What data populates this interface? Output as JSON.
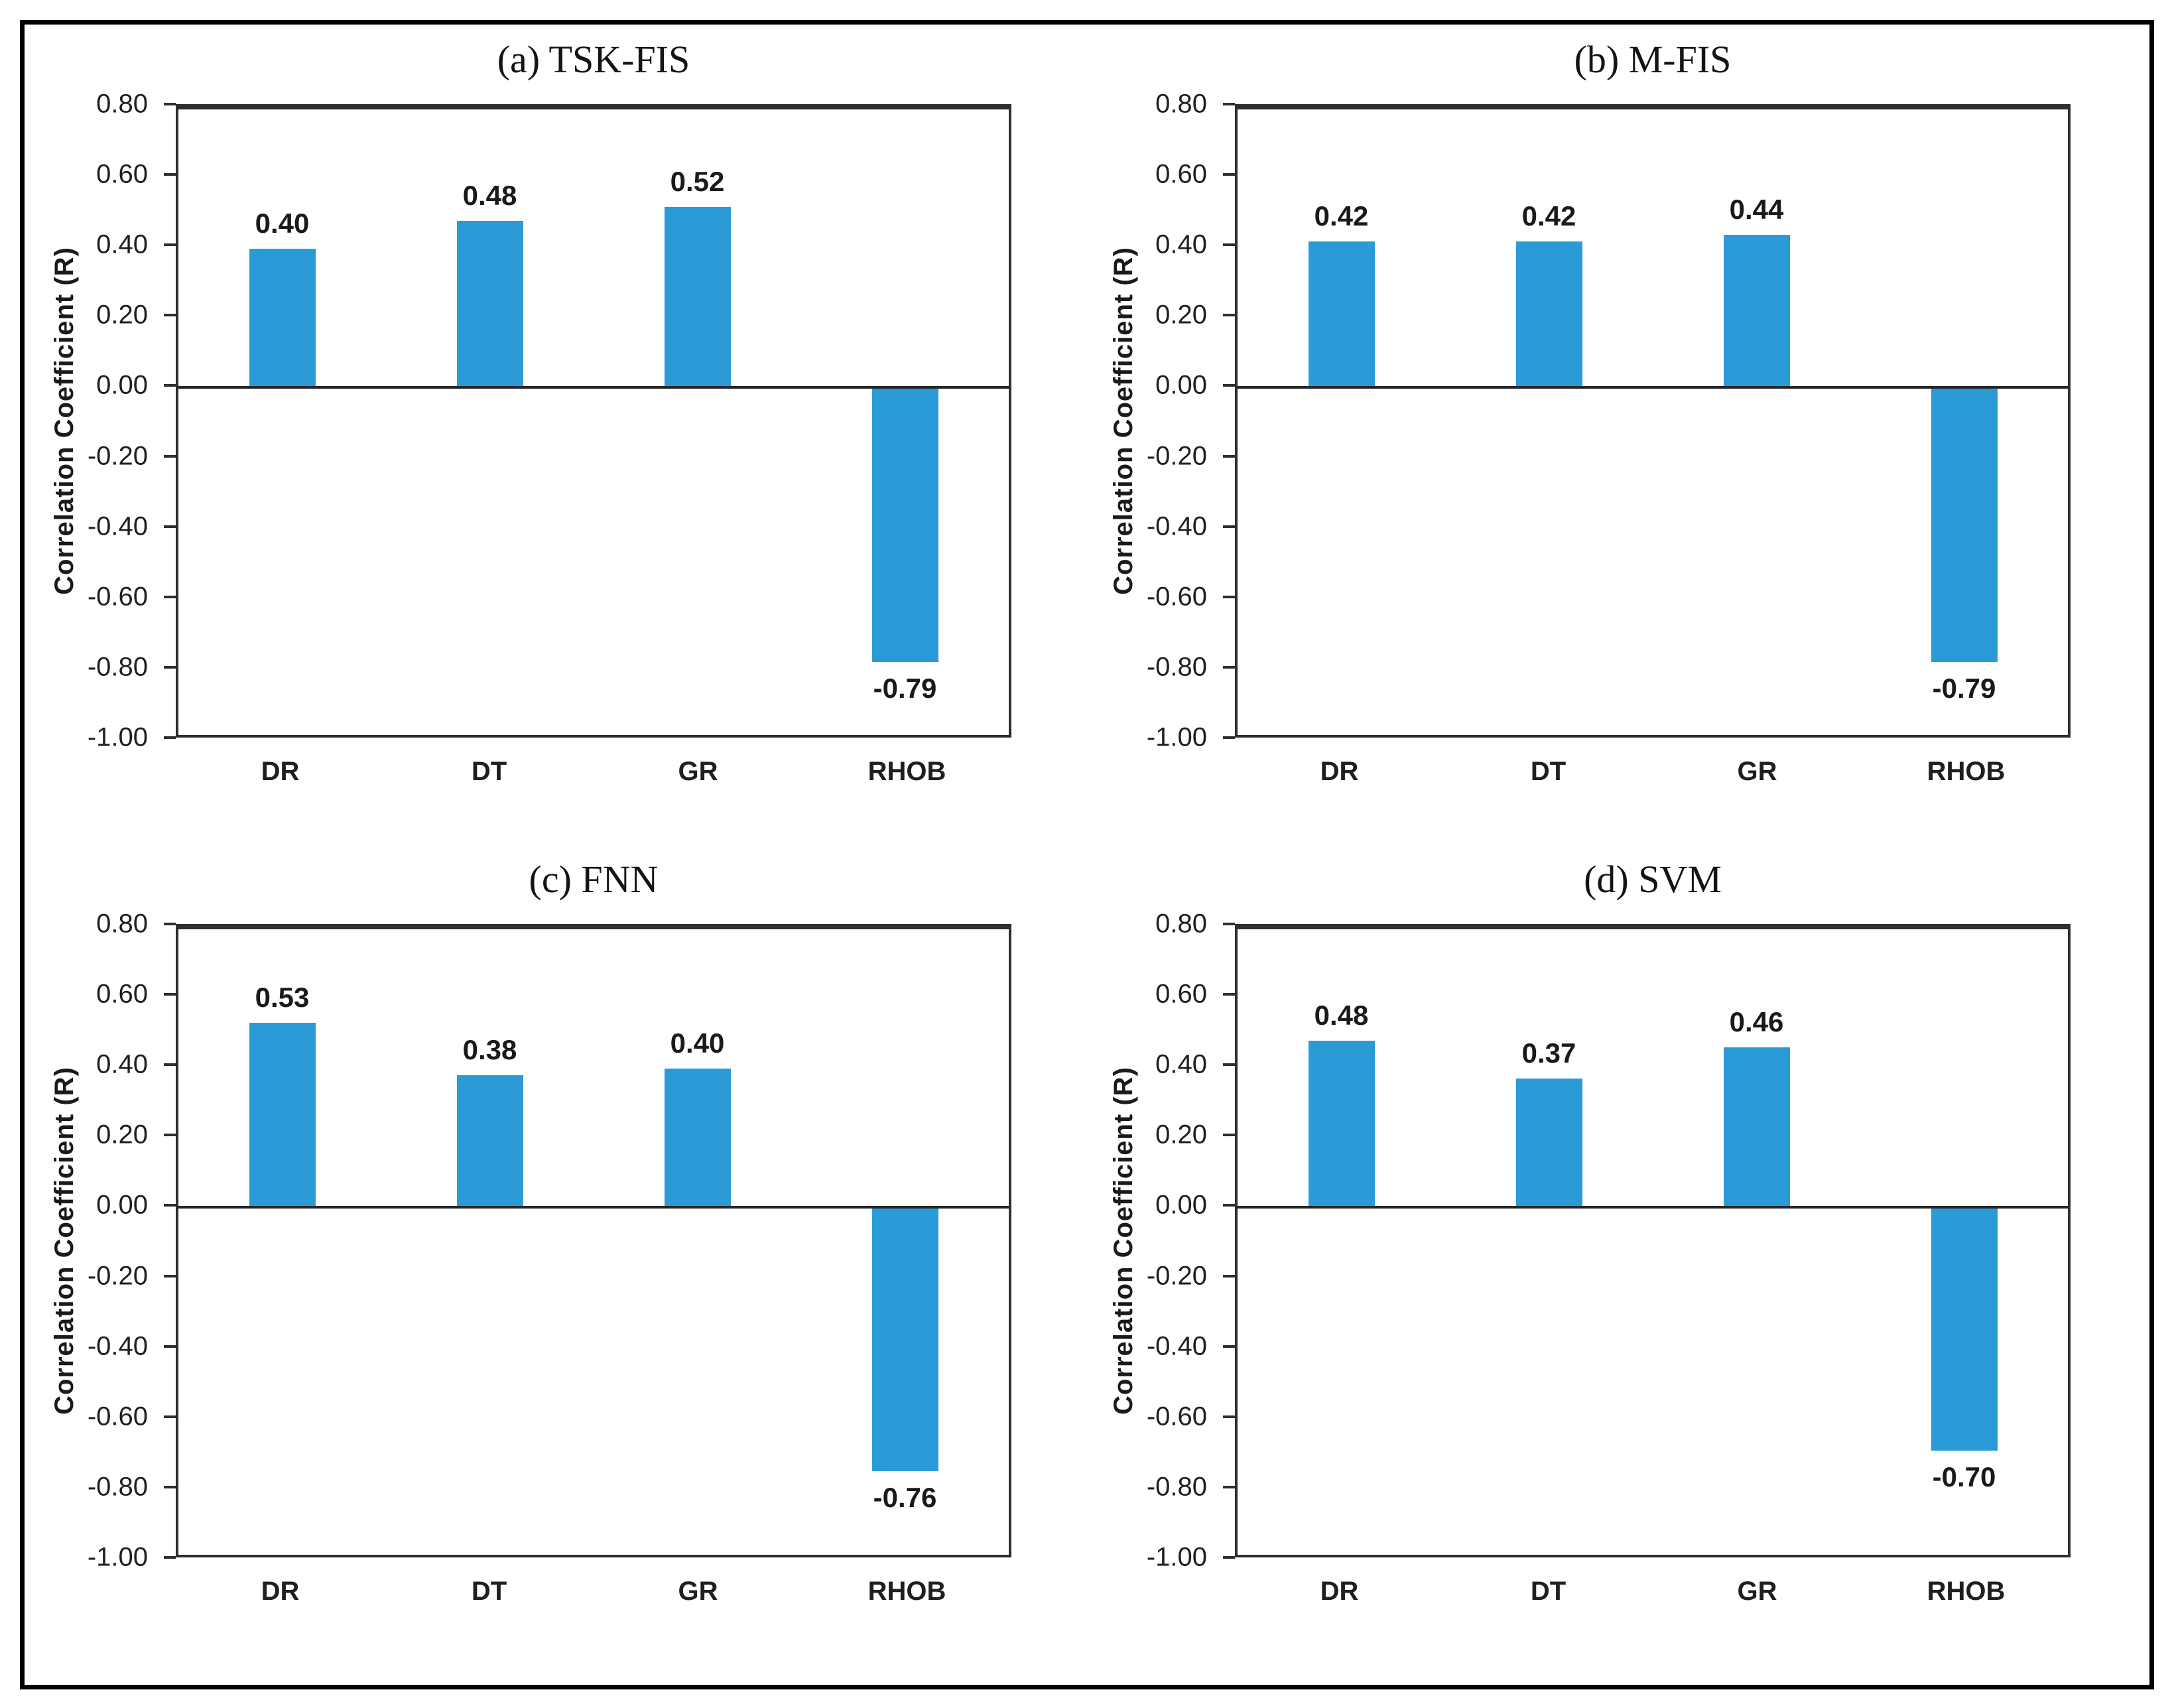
{
  "figure": {
    "background": "#ffffff",
    "border_color": "#000000",
    "bar_color": "#2B9BD7",
    "axis_color": "#2e2e2e",
    "text_color": "#1a1a1a"
  },
  "chart_data": [
    {
      "type": "bar",
      "panel_label": "(a) TSK-FIS",
      "categories": [
        "DR",
        "DT",
        "GR",
        "RHOB"
      ],
      "values": [
        0.4,
        0.48,
        0.52,
        -0.79
      ],
      "value_labels": [
        "0.40",
        "0.48",
        "0.52",
        "-0.79"
      ],
      "xlabel": "",
      "ylabel": "Correlation Coefficient (R)",
      "ylim": [
        -1.0,
        0.8
      ],
      "ytick_step": 0.2,
      "ytick_labels": [
        "0.80",
        "0.60",
        "0.40",
        "0.20",
        "0.00",
        "-0.20",
        "-0.40",
        "-0.60",
        "-0.80",
        "-1.00"
      ],
      "grid": false,
      "legend": null
    },
    {
      "type": "bar",
      "panel_label": "(b) M-FIS",
      "categories": [
        "DR",
        "DT",
        "GR",
        "RHOB"
      ],
      "values": [
        0.42,
        0.42,
        0.44,
        -0.79
      ],
      "value_labels": [
        "0.42",
        "0.42",
        "0.44",
        "-0.79"
      ],
      "xlabel": "",
      "ylabel": "Correlation Coefficient (R)",
      "ylim": [
        -1.0,
        0.8
      ],
      "ytick_step": 0.2,
      "ytick_labels": [
        "0.80",
        "0.60",
        "0.40",
        "0.20",
        "0.00",
        "-0.20",
        "-0.40",
        "-0.60",
        "-0.80",
        "-1.00"
      ],
      "grid": false,
      "legend": null
    },
    {
      "type": "bar",
      "panel_label": "(c) FNN",
      "categories": [
        "DR",
        "DT",
        "GR",
        "RHOB"
      ],
      "values": [
        0.53,
        0.38,
        0.4,
        -0.76
      ],
      "value_labels": [
        "0.53",
        "0.38",
        "0.40",
        "-0.76"
      ],
      "xlabel": "",
      "ylabel": "Correlation Coefficient (R)",
      "ylim": [
        -1.0,
        0.8
      ],
      "ytick_step": 0.2,
      "ytick_labels": [
        "0.80",
        "0.60",
        "0.40",
        "0.20",
        "0.00",
        "-0.20",
        "-0.40",
        "-0.60",
        "-0.80",
        "-1.00"
      ],
      "grid": false,
      "legend": null
    },
    {
      "type": "bar",
      "panel_label": "(d) SVM",
      "categories": [
        "DR",
        "DT",
        "GR",
        "RHOB"
      ],
      "values": [
        0.48,
        0.37,
        0.46,
        -0.7
      ],
      "value_labels": [
        "0.48",
        "0.37",
        "0.46",
        "-0.70"
      ],
      "xlabel": "",
      "ylabel": "Correlation Coefficient (R)",
      "ylim": [
        -1.0,
        0.8
      ],
      "ytick_step": 0.2,
      "ytick_labels": [
        "0.80",
        "0.60",
        "0.40",
        "0.20",
        "0.00",
        "-0.20",
        "-0.40",
        "-0.60",
        "-0.80",
        "-1.00"
      ],
      "grid": false,
      "legend": null
    }
  ]
}
